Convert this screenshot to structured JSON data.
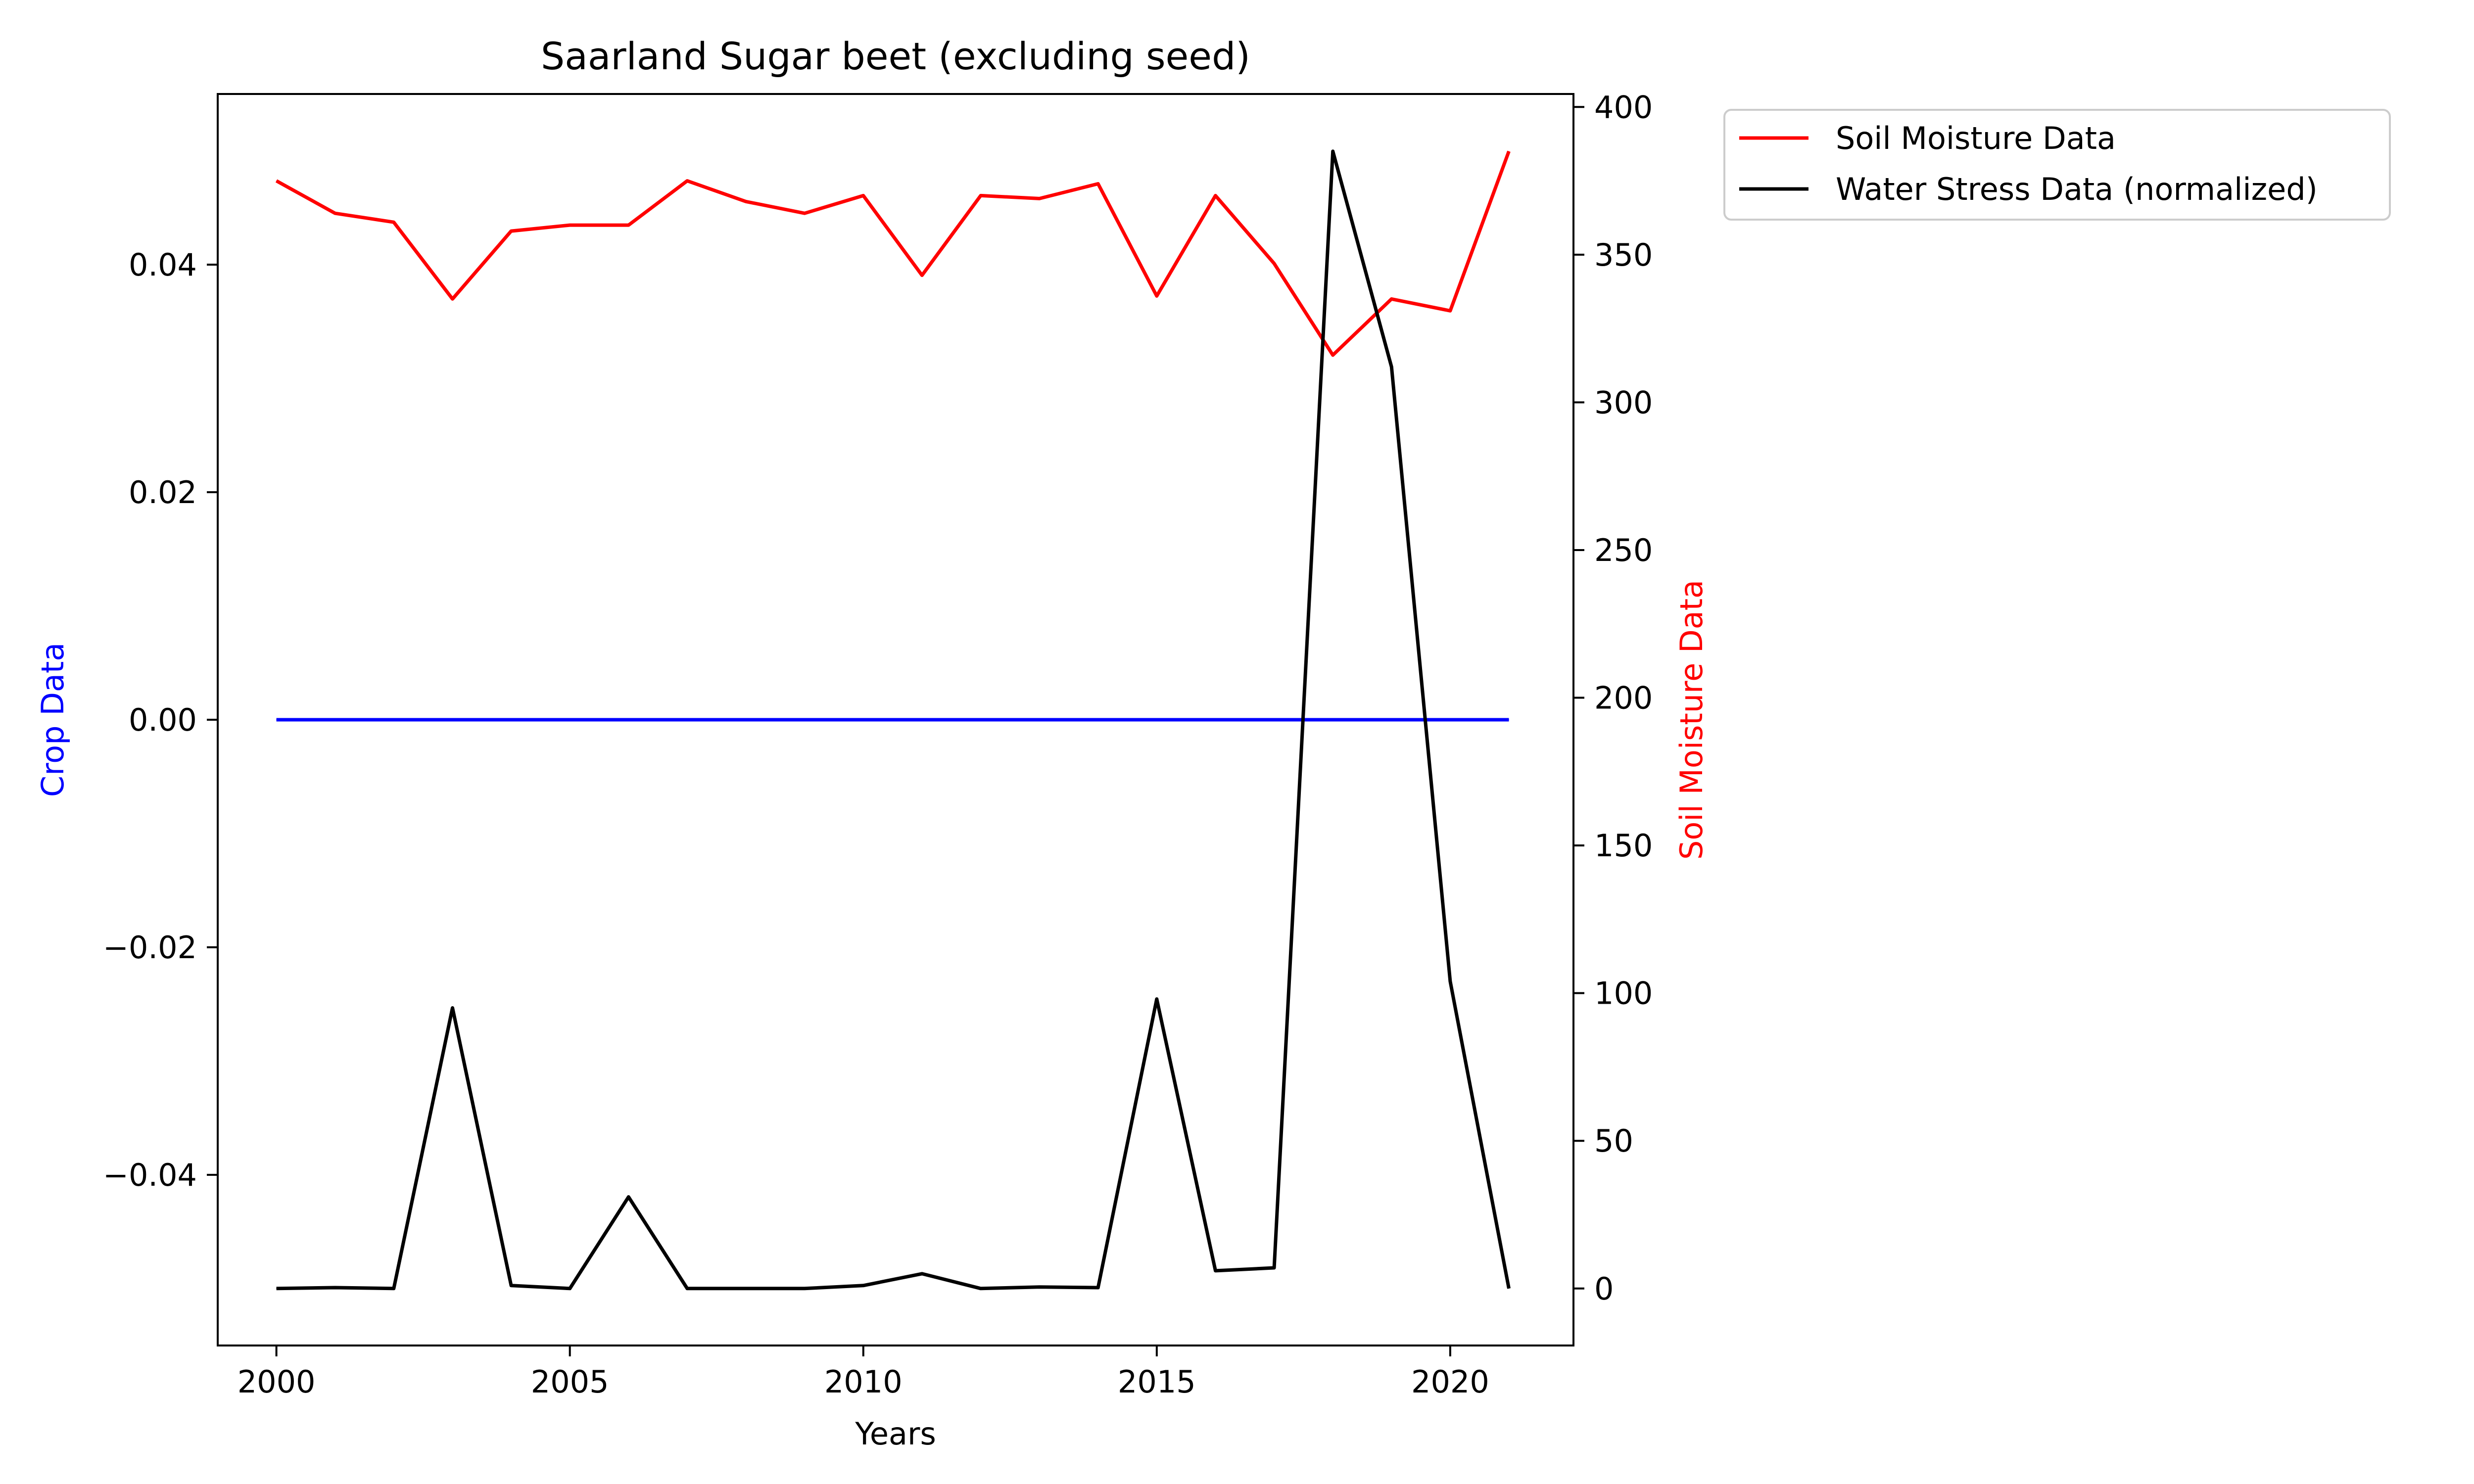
{
  "chart_data": {
    "type": "line",
    "title": "Saarland Sugar beet (excluding seed)",
    "xlabel": "Years",
    "ylabel_left": "Crop Data",
    "ylabel_right": "Soil Moisture Data",
    "xlim": [
      1999,
      2022.1
    ],
    "ylim_left": [
      -0.055,
      0.055
    ],
    "ylim_right": [
      -19.3,
      404.4
    ],
    "x_ticks": [
      2000,
      2005,
      2010,
      2015,
      2020
    ],
    "y_ticks_left": [
      {
        "value": -0.04,
        "label": "−0.04"
      },
      {
        "value": -0.02,
        "label": "−0.02"
      },
      {
        "value": 0.0,
        "label": "0.00"
      },
      {
        "value": 0.02,
        "label": "0.02"
      },
      {
        "value": 0.04,
        "label": "0.04"
      }
    ],
    "y_ticks_right": [
      0,
      50,
      100,
      150,
      200,
      250,
      300,
      350,
      400
    ],
    "x": [
      2000,
      2001,
      2002,
      2003,
      2004,
      2005,
      2006,
      2007,
      2008,
      2009,
      2010,
      2011,
      2012,
      2013,
      2014,
      2015,
      2016,
      2017,
      2018,
      2019,
      2020,
      2021
    ],
    "series": [
      {
        "name": "Crop Data",
        "axis": "left",
        "color": "#0000ff",
        "values": [
          0,
          0,
          0,
          0,
          0,
          0,
          0,
          0,
          0,
          0,
          0,
          0,
          0,
          0,
          0,
          0,
          0,
          0,
          0,
          0,
          0,
          0
        ]
      },
      {
        "name": "Soil Moisture Data",
        "axis": "right",
        "color": "#ff0000",
        "values": [
          375,
          364,
          361,
          335,
          358,
          360,
          360,
          375,
          368,
          364,
          370,
          343,
          370,
          369,
          374,
          336,
          370,
          347,
          316,
          335,
          331,
          385
        ]
      },
      {
        "name": "Water Stress Data (normalized)",
        "axis": "right",
        "color": "#000000",
        "values": [
          0,
          0.3,
          0,
          95,
          1,
          0,
          31,
          0,
          0,
          0,
          1,
          5,
          0,
          0.5,
          0.3,
          98,
          6,
          7,
          385,
          312,
          104,
          0
        ]
      }
    ],
    "legend": {
      "placement": "outside-top-right",
      "entries": [
        "Soil Moisture Data",
        "Water Stress Data (normalized)"
      ]
    },
    "grid": false
  }
}
